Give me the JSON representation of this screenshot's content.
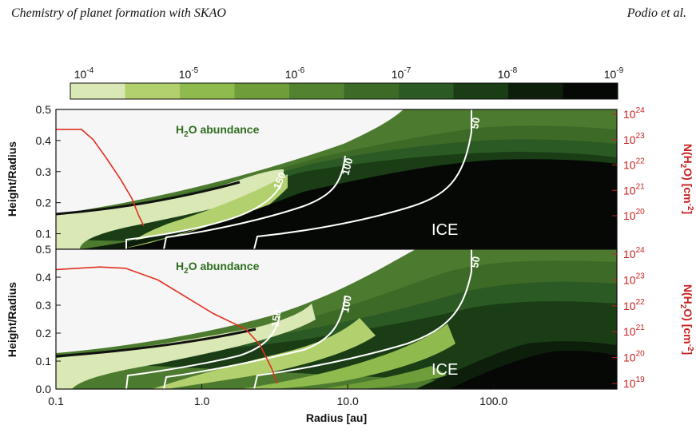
{
  "header": {
    "left": "Chemistry of planet formation with SKAO",
    "right": "Podio et al."
  },
  "colorbar": {
    "ticks": [
      {
        "base": "10",
        "exp": "-4"
      },
      {
        "base": "10",
        "exp": "-5"
      },
      {
        "base": "10",
        "exp": "-6"
      },
      {
        "base": "10",
        "exp": "-7"
      },
      {
        "base": "10",
        "exp": "-8"
      },
      {
        "base": "10",
        "exp": "-9"
      }
    ],
    "colors": [
      "#d9e8b4",
      "#b2d06e",
      "#8fba4e",
      "#6e9d39",
      "#538331",
      "#3d6b27",
      "#2c5a24",
      "#1a3d16",
      "#0d1f0b",
      "#050805"
    ]
  },
  "panels": [
    {
      "label": {
        "pre": "H",
        "sub": "2",
        "post": "O abundance"
      },
      "ice": "ICE",
      "contours": [
        {
          "label": "150"
        },
        {
          "label": "100"
        },
        {
          "label": "50"
        }
      ]
    },
    {
      "label": {
        "pre": "H",
        "sub": "2",
        "post": "O abundance"
      },
      "ice": "ICE",
      "contours": [
        {
          "label": "150"
        },
        {
          "label": "100"
        },
        {
          "label": "50"
        }
      ]
    }
  ],
  "axes": {
    "xlabel": "Radius [au]",
    "ylabel": "Height/Radius",
    "xticks": [
      "0.1",
      "1.0",
      "10.0",
      "100.0"
    ],
    "yticks_top": [
      "0.1",
      "0.2",
      "0.3",
      "0.4",
      "0.5"
    ],
    "yticks_bottom": [
      "0.0",
      "0.1",
      "0.2",
      "0.3",
      "0.4",
      "0.5"
    ],
    "right_label": {
      "a": "N(H",
      "sub1": "2",
      "b": "O) [cm",
      "sup": "-2",
      "c": "]"
    },
    "right_ticks_top": [
      {
        "base": "10",
        "exp": "20"
      },
      {
        "base": "10",
        "exp": "21"
      },
      {
        "base": "10",
        "exp": "22"
      },
      {
        "base": "10",
        "exp": "23"
      },
      {
        "base": "10",
        "exp": "24"
      }
    ],
    "right_ticks_bottom": [
      {
        "base": "10",
        "exp": "19"
      },
      {
        "base": "10",
        "exp": "20"
      },
      {
        "base": "10",
        "exp": "21"
      },
      {
        "base": "10",
        "exp": "22"
      },
      {
        "base": "10",
        "exp": "23"
      },
      {
        "base": "10",
        "exp": "24"
      }
    ]
  },
  "chart_data": {
    "type": "heatmap",
    "xlabel": "Radius [au]",
    "ylabel": "Height/Radius",
    "xscale": "log",
    "xlim": [
      0.1,
      700
    ],
    "ylim_top": [
      0.05,
      0.5
    ],
    "ylim_bottom": [
      0.0,
      0.5
    ],
    "colorbar_range": [
      0.0001,
      1e-09
    ],
    "colors_hint": {
      "column_line": "#e03020",
      "contours": "#ffffff"
    },
    "column_density_top": {
      "x": [
        0.1,
        0.15,
        0.18,
        0.22,
        0.28,
        0.33,
        0.37,
        0.4
      ],
      "log_N": [
        23.4,
        23.4,
        23.0,
        22.3,
        21.4,
        20.7,
        20.0,
        19.6
      ]
    },
    "column_density_bottom": {
      "x": [
        0.1,
        0.2,
        0.3,
        0.5,
        0.8,
        1.2,
        2.0,
        2.5,
        3.0,
        3.3
      ],
      "log_N": [
        23.4,
        23.5,
        23.45,
        23.0,
        22.3,
        21.7,
        21.1,
        20.5,
        19.6,
        19.0
      ]
    }
  }
}
